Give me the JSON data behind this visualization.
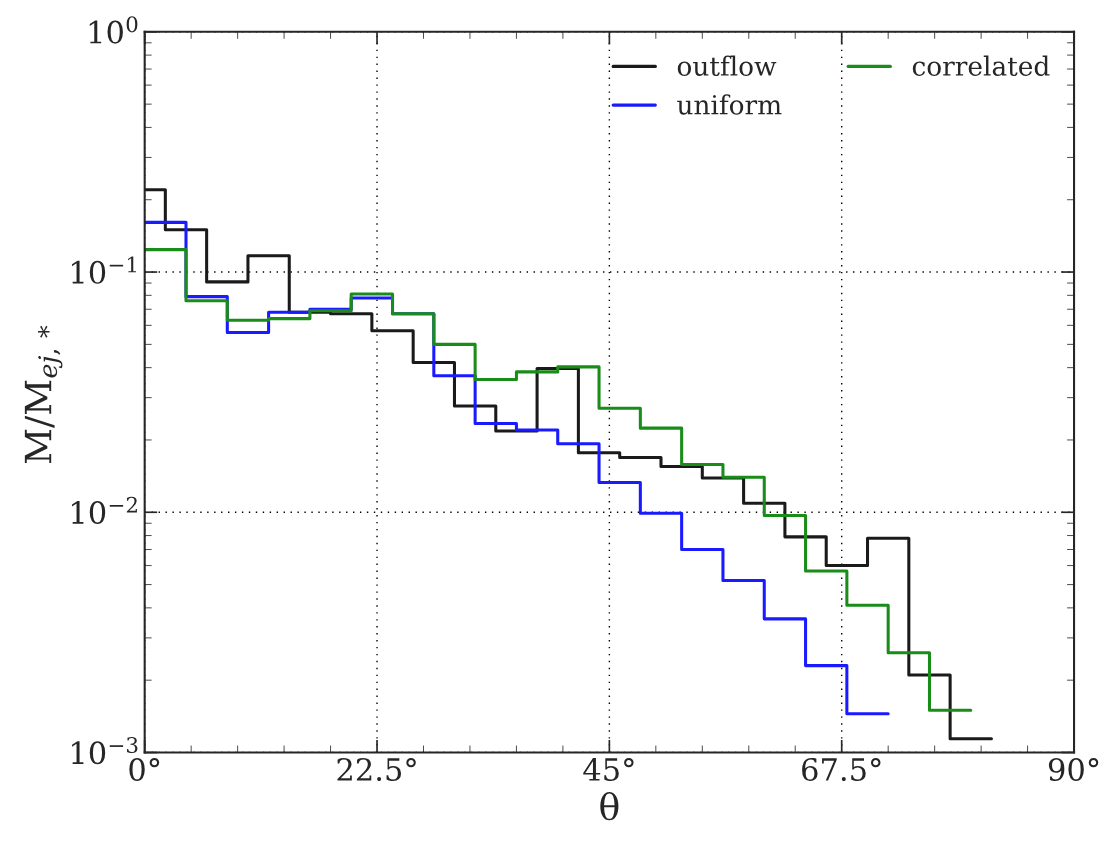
{
  "chart_data": {
    "type": "step",
    "xlabel": "θ",
    "ylabel": "M/M$_{ej,*}$",
    "xlim": [
      0,
      90
    ],
    "xticks": [
      {
        "value": 0,
        "label": "0°"
      },
      {
        "value": 22.5,
        "label": "22.5°"
      },
      {
        "value": 45,
        "label": "45°"
      },
      {
        "value": 67.5,
        "label": "67.5°"
      },
      {
        "value": 90,
        "label": "90°"
      }
    ],
    "ylim": [
      0.001,
      1
    ],
    "yticks": [
      {
        "value": 0.001,
        "label": "10$^{−3}$"
      },
      {
        "value": 0.01,
        "label": "10$^{−2}$"
      },
      {
        "value": 0.1,
        "label": "10$^{−1}$"
      },
      {
        "value": 1,
        "label": "10$^{0}$"
      }
    ],
    "log": "y",
    "grid": true,
    "legend": "top right",
    "series": [
      {
        "name": "outflow",
        "color": "#1a1a1a",
        "x": [
          0,
          2,
          6,
          10,
          14,
          18,
          22,
          26,
          30,
          34,
          38,
          42,
          46,
          50,
          54,
          58,
          62,
          66,
          70,
          74,
          78,
          82
        ],
        "values": [
          0.22,
          0.15,
          0.091,
          0.117,
          0.068,
          0.067,
          0.057,
          0.042,
          0.0277,
          0.0218,
          0.0397,
          0.0177,
          0.0169,
          0.0155,
          0.0139,
          0.0109,
          0.0079,
          0.006,
          0.0078,
          0.0021,
          0.00114,
          0.00114
        ]
      },
      {
        "name": "uniform",
        "color": "#1a1aff",
        "x": [
          0,
          4,
          8,
          12,
          16,
          20,
          24,
          28,
          32,
          36,
          40,
          44,
          48,
          52,
          56,
          60,
          64,
          68,
          72
        ],
        "values": [
          0.161,
          0.079,
          0.056,
          0.068,
          0.07,
          0.078,
          0.067,
          0.037,
          0.0234,
          0.022,
          0.0193,
          0.0133,
          0.0099,
          0.007,
          0.0052,
          0.0036,
          0.0023,
          0.00145,
          0.00145
        ]
      },
      {
        "name": "correlated",
        "color": "#1a8c1a",
        "x": [
          0,
          4,
          8,
          12,
          16,
          20,
          24,
          28,
          32,
          36,
          40,
          44,
          48,
          52,
          56,
          60,
          64,
          68,
          72,
          76,
          80
        ],
        "values": [
          0.124,
          0.076,
          0.063,
          0.064,
          0.069,
          0.081,
          0.067,
          0.05,
          0.0357,
          0.0384,
          0.0403,
          0.0271,
          0.0224,
          0.0158,
          0.014,
          0.0097,
          0.0057,
          0.0041,
          0.0026,
          0.0015,
          0.0015
        ]
      }
    ]
  }
}
